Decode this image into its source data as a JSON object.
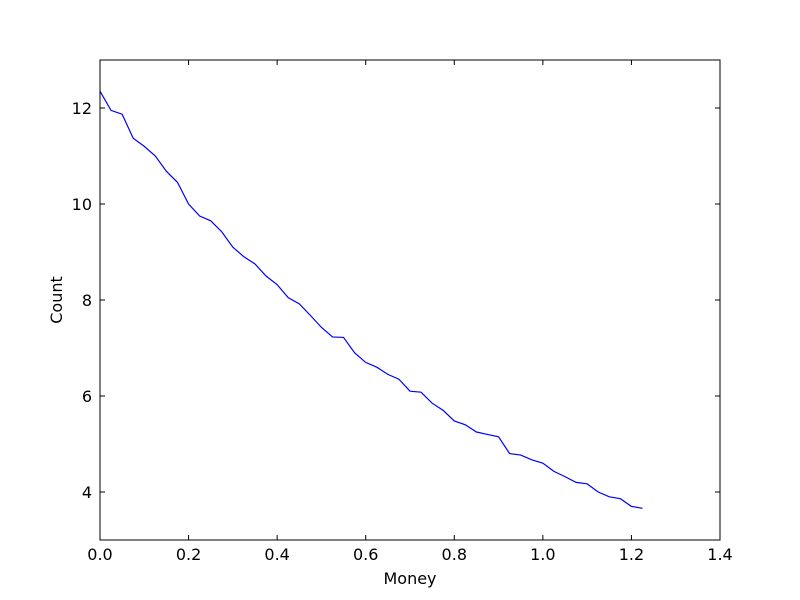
{
  "chart_data": {
    "type": "line",
    "title": "",
    "xlabel": "Money",
    "ylabel": "Count",
    "xlim": [
      0.0,
      1.4
    ],
    "ylim": [
      3.0,
      13.0
    ],
    "xticks": [
      0.0,
      0.2,
      0.4,
      0.6,
      0.8,
      1.0,
      1.2,
      1.4
    ],
    "xtick_labels": [
      "0.0",
      "0.2",
      "0.4",
      "0.6",
      "0.8",
      "1.0",
      "1.2",
      "1.4"
    ],
    "yticks": [
      4,
      6,
      8,
      10,
      12
    ],
    "ytick_labels": [
      "4",
      "6",
      "8",
      "10",
      "12"
    ],
    "grid": false,
    "series": [
      {
        "name": "Count",
        "color": "#0000ff",
        "x": [
          0.0,
          0.025,
          0.05,
          0.075,
          0.1,
          0.125,
          0.15,
          0.175,
          0.2,
          0.225,
          0.25,
          0.275,
          0.3,
          0.325,
          0.35,
          0.375,
          0.4,
          0.425,
          0.45,
          0.475,
          0.5,
          0.525,
          0.55,
          0.575,
          0.6,
          0.625,
          0.65,
          0.675,
          0.7,
          0.725,
          0.75,
          0.775,
          0.8,
          0.825,
          0.85,
          0.875,
          0.9,
          0.925,
          0.95,
          0.975,
          1.0,
          1.025,
          1.05,
          1.075,
          1.1,
          1.125,
          1.15,
          1.175,
          1.2,
          1.225
        ],
        "y": [
          12.35,
          11.95,
          11.87,
          11.37,
          11.2,
          11.0,
          10.68,
          10.45,
          10.0,
          9.75,
          9.65,
          9.42,
          9.1,
          8.9,
          8.75,
          8.5,
          8.32,
          8.05,
          7.92,
          7.68,
          7.43,
          7.23,
          7.22,
          6.9,
          6.7,
          6.6,
          6.45,
          6.35,
          6.1,
          6.08,
          5.85,
          5.7,
          5.48,
          5.4,
          5.25,
          5.2,
          5.15,
          4.8,
          4.77,
          4.67,
          4.6,
          4.43,
          4.32,
          4.2,
          4.17,
          4.0,
          3.9,
          3.86,
          3.7,
          3.66
        ]
      }
    ]
  }
}
